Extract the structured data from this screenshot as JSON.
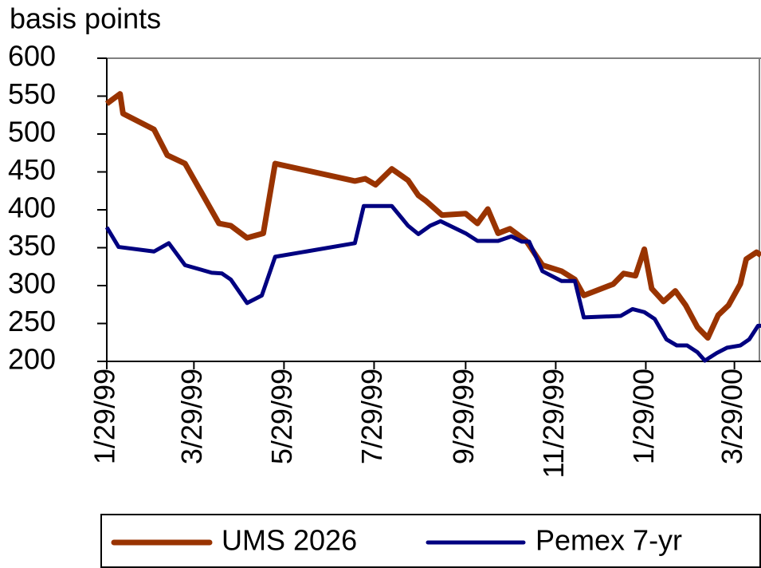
{
  "chart_data": {
    "type": "line",
    "ylabel": "basis points",
    "xlim": [
      "1999-01-29",
      "2000-04-16"
    ],
    "xticks": [
      {
        "value": "1999-01-29",
        "label": "1/29/99"
      },
      {
        "value": "1999-03-29",
        "label": "3/29/99"
      },
      {
        "value": "1999-05-29",
        "label": "5/29/99"
      },
      {
        "value": "1999-07-29",
        "label": "7/29/99"
      },
      {
        "value": "1999-09-29",
        "label": "9/29/99"
      },
      {
        "value": "1999-11-29",
        "label": "11/29/99"
      },
      {
        "value": "2000-01-29",
        "label": "1/29/00"
      },
      {
        "value": "2000-03-29",
        "label": "3/29/00"
      }
    ],
    "ylim": [
      200,
      600
    ],
    "yticks": [
      200,
      250,
      300,
      350,
      400,
      450,
      500,
      550,
      600
    ],
    "grid": false,
    "legend": "bottom",
    "series": [
      {
        "name": "UMS 2026",
        "color": "#993300",
        "x": [
          "1999-01-29",
          "1999-02-07",
          "1999-02-09",
          "1999-03-02",
          "1999-03-11",
          "1999-03-23",
          "1999-04-15",
          "1999-04-23",
          "1999-05-04",
          "1999-05-15",
          "1999-05-23",
          "1999-07-16",
          "1999-07-23",
          "1999-07-30",
          "1999-08-10",
          "1999-08-21",
          "1999-08-28",
          "1999-09-02",
          "1999-09-13",
          "1999-09-29",
          "1999-10-07",
          "1999-10-14",
          "1999-10-21",
          "1999-10-29",
          "1999-11-09",
          "1999-11-20",
          "1999-12-03",
          "1999-12-12",
          "1999-12-18",
          "2000-01-07",
          "2000-01-14",
          "2000-01-22",
          "2000-01-28",
          "2000-02-02",
          "2000-02-10",
          "2000-02-18",
          "2000-02-25",
          "2000-03-04",
          "2000-03-11",
          "2000-03-18",
          "2000-03-25",
          "2000-04-02",
          "2000-04-06",
          "2000-04-13",
          "2000-04-16"
        ],
        "values": [
          540,
          553,
          527,
          506,
          472,
          461,
          382,
          379,
          363,
          369,
          461,
          438,
          441,
          433,
          454,
          439,
          419,
          412,
          393,
          395,
          382,
          401,
          369,
          375,
          359,
          327,
          319,
          308,
          287,
          302,
          316,
          313,
          348,
          296,
          279,
          293,
          274,
          245,
          231,
          261,
          274,
          302,
          335,
          344,
          340
        ]
      },
      {
        "name": "Pemex 7-yr",
        "color": "#000080",
        "x": [
          "1999-01-29",
          "1999-02-06",
          "1999-03-02",
          "1999-03-12",
          "1999-03-23",
          "1999-04-10",
          "1999-04-17",
          "1999-04-23",
          "1999-05-04",
          "1999-05-14",
          "1999-05-23",
          "1999-07-16",
          "1999-07-22",
          "1999-08-10",
          "1999-08-21",
          "1999-08-28",
          "1999-09-05",
          "1999-09-12",
          "1999-09-29",
          "1999-10-07",
          "1999-10-21",
          "1999-10-30",
          "1999-11-06",
          "1999-11-11",
          "1999-11-20",
          "1999-12-03",
          "1999-12-12",
          "1999-12-18",
          "2000-01-12",
          "2000-01-20",
          "2000-01-28",
          "2000-02-04",
          "2000-02-12",
          "2000-02-19",
          "2000-02-26",
          "2000-03-04",
          "2000-03-09",
          "2000-03-17",
          "2000-03-24",
          "2000-04-02",
          "2000-04-08",
          "2000-04-14",
          "2000-04-16"
        ],
        "values": [
          377,
          351,
          345,
          356,
          327,
          317,
          316,
          308,
          277,
          287,
          338,
          356,
          405,
          405,
          379,
          368,
          379,
          385,
          369,
          359,
          359,
          365,
          358,
          358,
          319,
          306,
          306,
          258,
          260,
          269,
          265,
          256,
          229,
          221,
          221,
          212,
          201,
          211,
          218,
          221,
          229,
          247,
          247
        ]
      }
    ]
  }
}
